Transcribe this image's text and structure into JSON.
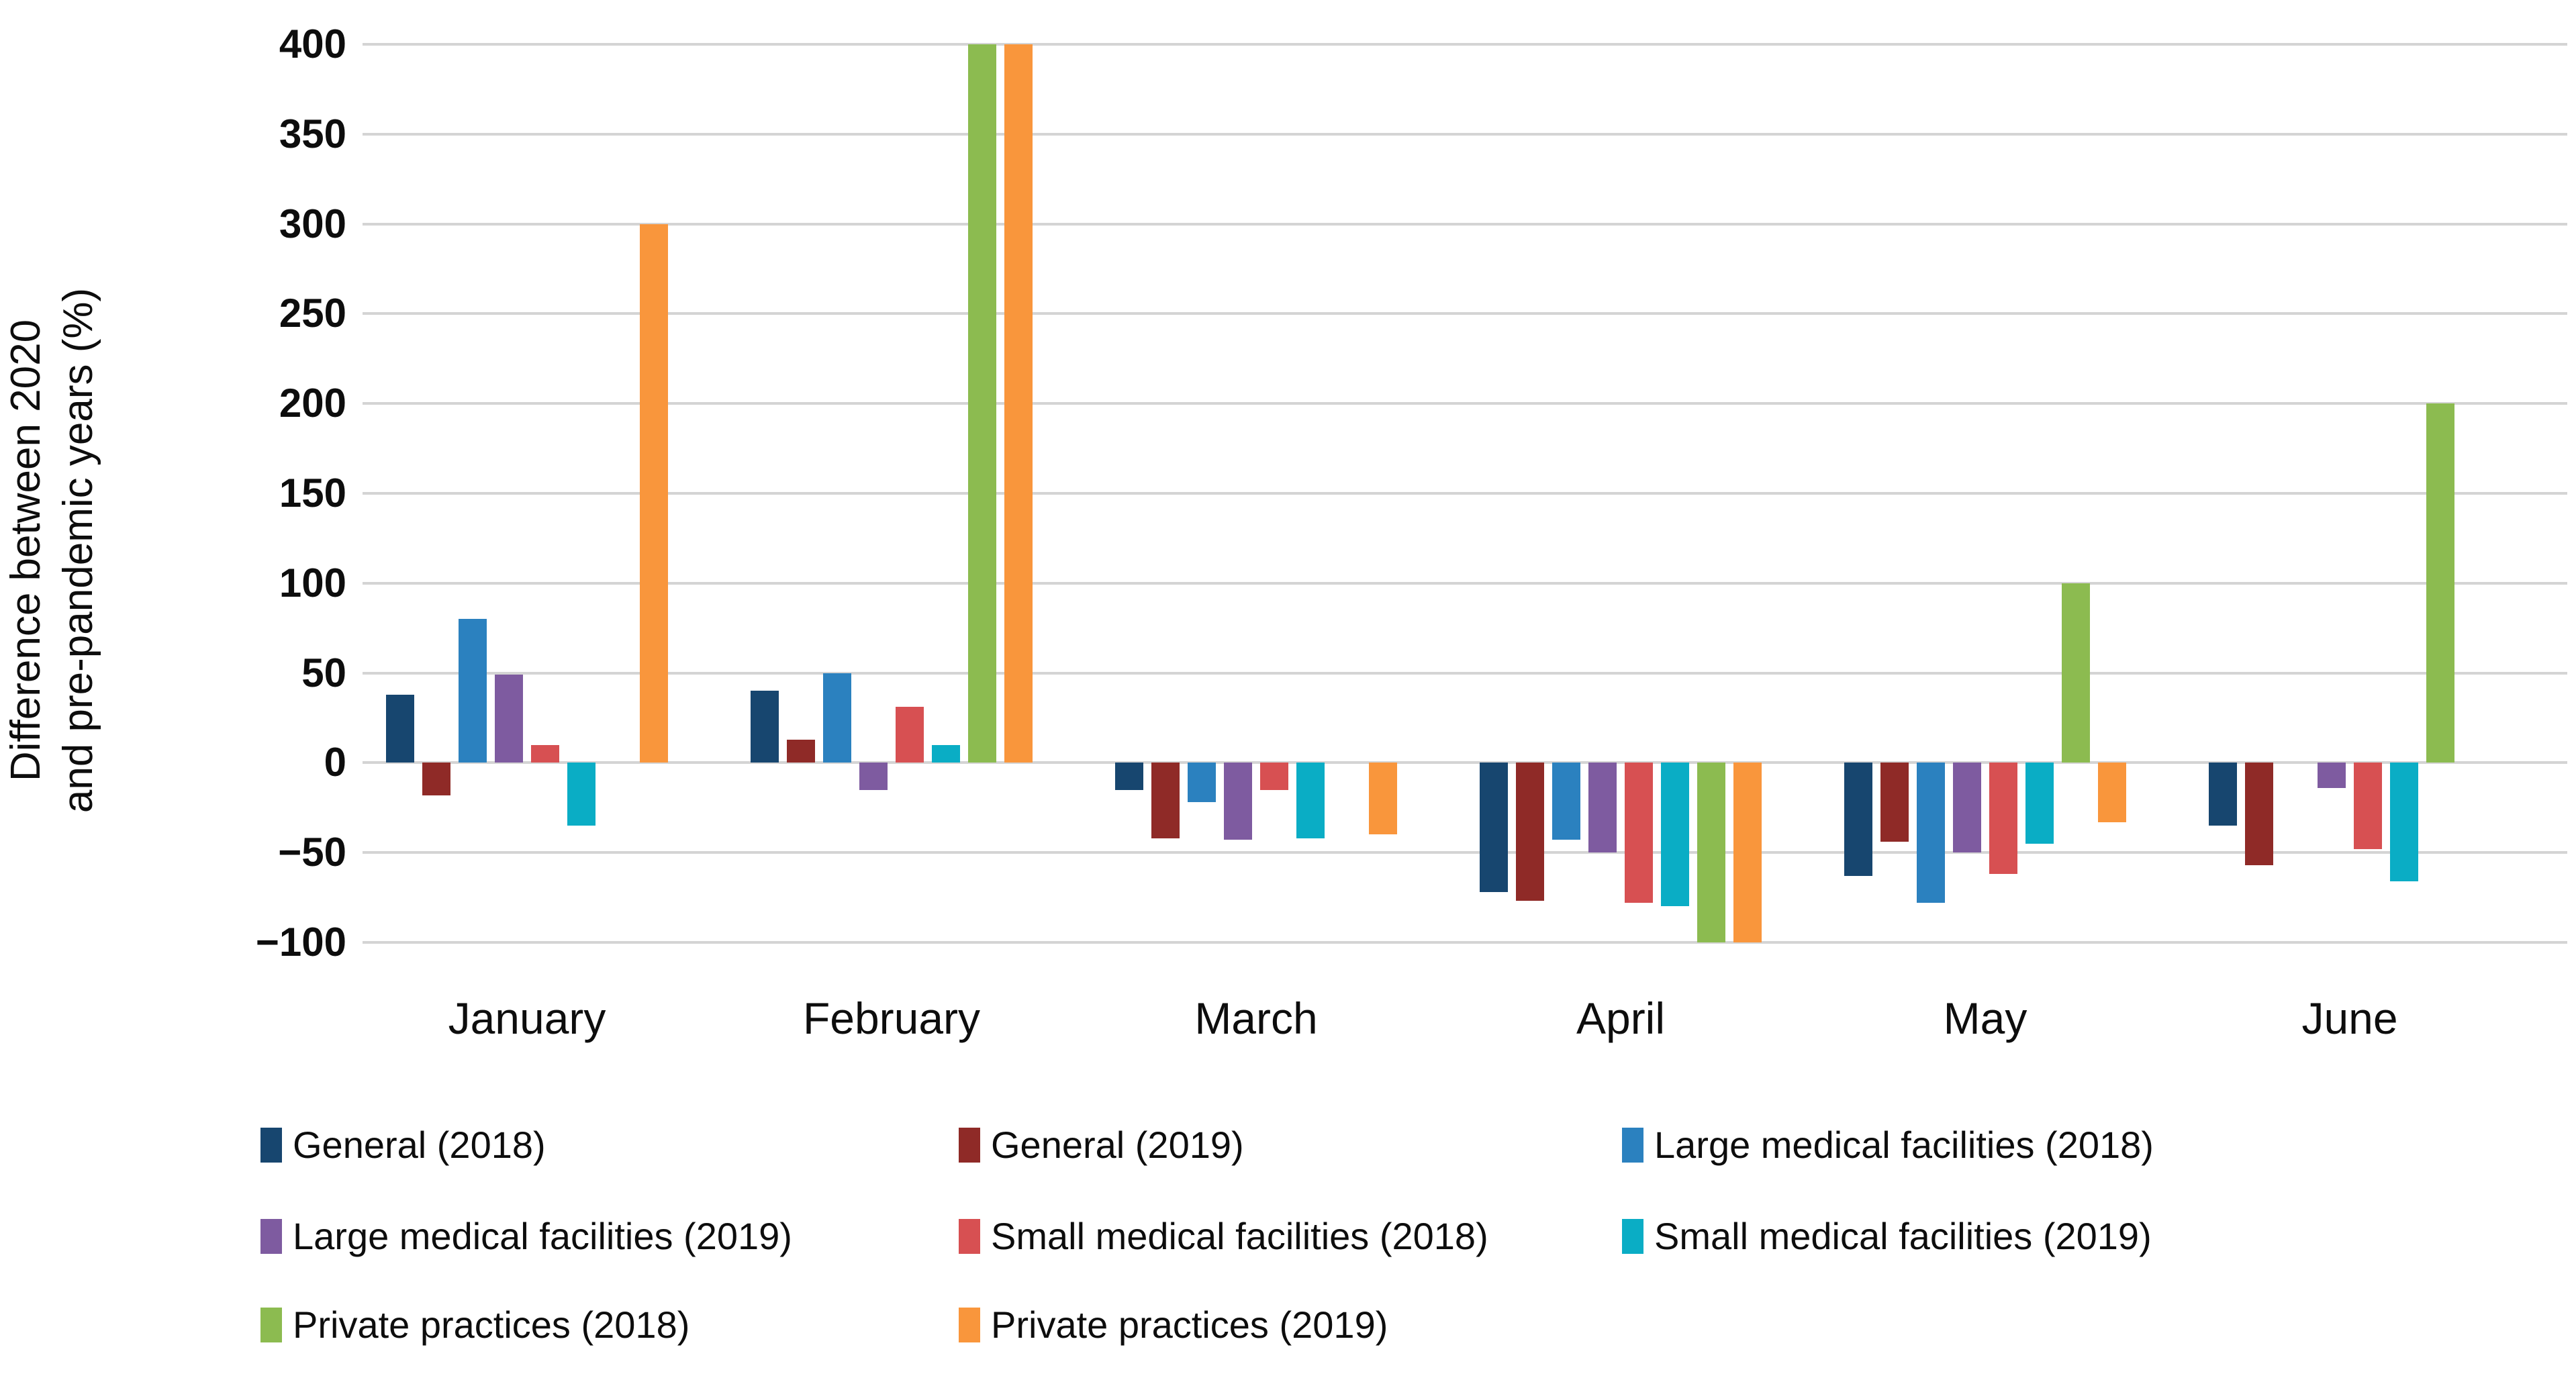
{
  "chart_data": {
    "type": "bar",
    "title": "",
    "ylabel_lines": [
      "Difference between 2020",
      "and pre-pandemic years (%)"
    ],
    "ylabel": "Difference between 2020 and pre-pandemic years (%)",
    "xlabel": "",
    "ylim": [
      -100,
      400
    ],
    "y_ticks": [
      400,
      350,
      300,
      250,
      200,
      150,
      100,
      50,
      0,
      -50,
      -100
    ],
    "grid": true,
    "legend_position": "bottom",
    "categories": [
      "January",
      "February",
      "March",
      "April",
      "May",
      "June"
    ],
    "series": [
      {
        "name": "General (2018)",
        "color": "#17466F",
        "values": [
          38,
          40,
          -15,
          -72,
          -63,
          -35
        ]
      },
      {
        "name": "General (2019)",
        "color": "#8F2A27",
        "values": [
          -18,
          13,
          -42,
          -77,
          -44,
          -57
        ]
      },
      {
        "name": "Large medical facilities (2018)",
        "color": "#2B81BF",
        "values": [
          80,
          50,
          -22,
          -43,
          -78,
          0
        ]
      },
      {
        "name": "Large medical facilities (2019)",
        "color": "#7E5BA0",
        "values": [
          49,
          -15,
          -43,
          -50,
          -50,
          -14
        ]
      },
      {
        "name": "Small medical facilities (2018)",
        "color": "#D75052",
        "values": [
          10,
          31,
          -15,
          -78,
          -62,
          -48
        ]
      },
      {
        "name": "Small medical facilities (2019)",
        "color": "#0AADC5",
        "values": [
          -35,
          10,
          -42,
          -80,
          -45,
          -66
        ]
      },
      {
        "name": "Private practices (2018)",
        "color": "#8CBB50",
        "values": [
          0,
          400,
          0,
          -100,
          100,
          200
        ]
      },
      {
        "name": "Private practices (2019)",
        "color": "#F9963C",
        "values": [
          300,
          400,
          -40,
          -100,
          -33,
          0
        ]
      }
    ]
  }
}
